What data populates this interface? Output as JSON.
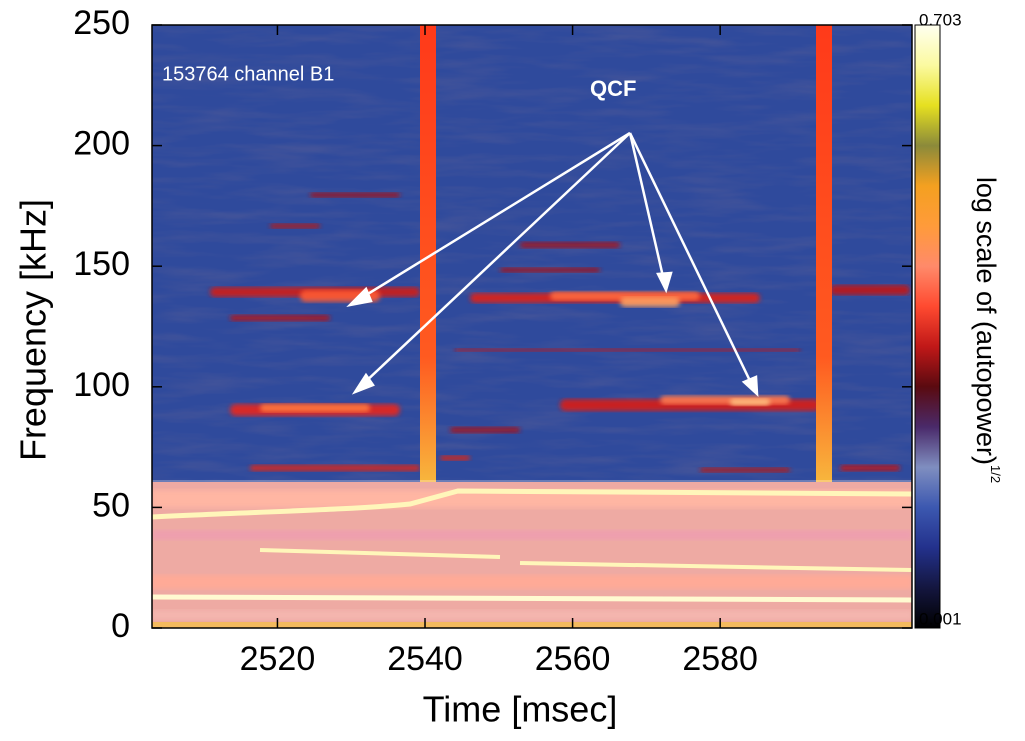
{
  "chart_data": {
    "type": "spectrogram",
    "x_label": "Time [msec]",
    "y_label": "Frequency [kHz]",
    "xlim": [
      2503,
      2606
    ],
    "xticks": [
      2520,
      2540,
      2560,
      2580
    ],
    "ylim": [
      0,
      250
    ],
    "yticks": [
      0,
      50,
      100,
      150,
      200,
      250
    ],
    "annotations": [
      "153764 channel B1",
      "QCF"
    ],
    "colorbar": {
      "label": "log scale of (autopower)",
      "label_sup": "1/2",
      "lim": [
        0.001,
        0.703
      ],
      "ticks": [
        0.001,
        0.703
      ],
      "scale": "log",
      "colormap": [
        "#000000",
        "#14163f",
        "#23318c",
        "#3c58b0",
        "#7f8ec0",
        "#4a2a6a",
        "#5a0a10",
        "#c01818",
        "#ff4a30",
        "#ff8a6a",
        "#ff9b3a",
        "#f4a020",
        "#8b8a3a",
        "#e6e020",
        "#fbfaa0",
        "#fffff0"
      ]
    }
  }
}
